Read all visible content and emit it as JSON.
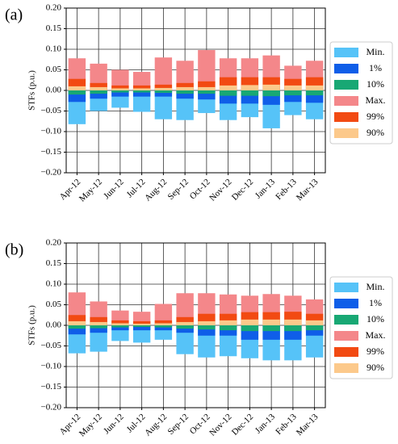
{
  "chart_data": [
    {
      "type": "bar",
      "label": "(a)",
      "y_label": "STFs (p.u.)",
      "grid": true,
      "legend": "right",
      "categories": [
        "Apr-12",
        "May-12",
        "Jun-12",
        "Jul-12",
        "Aug-12",
        "Sep-12",
        "Oct-12",
        "Nov-12",
        "Dec-12",
        "Jan-13",
        "Feb-13",
        "Mar-13"
      ],
      "ylim": [
        -0.2,
        0.2
      ],
      "yticks": [
        {
          "value": -0.2,
          "label": "−0.20"
        },
        {
          "value": -0.15,
          "label": "−0.15"
        },
        {
          "value": -0.1,
          "label": "−0.10"
        },
        {
          "value": -0.05,
          "label": "−0.05"
        },
        {
          "value": 0,
          "label": "0.00"
        },
        {
          "value": 0.05,
          "label": "0.05"
        },
        {
          "value": 0.1,
          "label": "0.10"
        },
        {
          "value": 0.15,
          "label": "0.15"
        },
        {
          "value": 0.2,
          "label": "0.20"
        }
      ],
      "series": [
        {
          "name": "Min.",
          "color": "#56c3f8",
          "values": [
            -0.082,
            -0.05,
            -0.042,
            -0.052,
            -0.07,
            -0.072,
            -0.055,
            -0.072,
            -0.065,
            -0.092,
            -0.06,
            -0.07
          ]
        },
        {
          "name": "1%",
          "color": "#0f5ee8",
          "values": [
            -0.028,
            -0.02,
            -0.015,
            -0.015,
            -0.015,
            -0.02,
            -0.022,
            -0.032,
            -0.032,
            -0.035,
            -0.028,
            -0.03
          ]
        },
        {
          "name": "10%",
          "color": "#18a874",
          "values": [
            -0.01,
            -0.008,
            -0.005,
            -0.005,
            -0.006,
            -0.008,
            -0.008,
            -0.013,
            -0.013,
            -0.014,
            -0.012,
            -0.012
          ]
        },
        {
          "name": "Max.",
          "color": "#f4878a",
          "values": [
            0.078,
            0.065,
            0.05,
            0.045,
            0.08,
            0.072,
            0.098,
            0.078,
            0.078,
            0.085,
            0.06,
            0.072
          ]
        },
        {
          "name": "99%",
          "color": "#f24a12",
          "values": [
            0.028,
            0.018,
            0.012,
            0.012,
            0.014,
            0.018,
            0.022,
            0.032,
            0.032,
            0.032,
            0.028,
            0.032
          ]
        },
        {
          "name": "90%",
          "color": "#fcc98b",
          "values": [
            0.01,
            0.008,
            0.005,
            0.005,
            0.006,
            0.008,
            0.008,
            0.012,
            0.013,
            0.014,
            0.012,
            0.012
          ]
        }
      ]
    },
    {
      "type": "bar",
      "label": "(b)",
      "y_label": "STFs (p.u.)",
      "grid": true,
      "legend": "right",
      "categories": [
        "Apr-12",
        "May-12",
        "Jun-12",
        "Jul-12",
        "Aug-12",
        "Sep-12",
        "Oct-12",
        "Nov-12",
        "Dec-12",
        "Jan-13",
        "Feb-13",
        "Mar-13"
      ],
      "ylim": [
        -0.2,
        0.2
      ],
      "yticks": [
        {
          "value": -0.2,
          "label": "−0.20"
        },
        {
          "value": -0.15,
          "label": "−0.15"
        },
        {
          "value": -0.1,
          "label": "−0.10"
        },
        {
          "value": -0.05,
          "label": "−0.05"
        },
        {
          "value": 0,
          "label": "0.00"
        },
        {
          "value": 0.05,
          "label": "0.05"
        },
        {
          "value": 0.1,
          "label": "0.10"
        },
        {
          "value": 0.15,
          "label": "0.15"
        },
        {
          "value": 0.2,
          "label": "0.20"
        }
      ],
      "series": [
        {
          "name": "Min.",
          "color": "#56c3f8",
          "values": [
            -0.068,
            -0.064,
            -0.038,
            -0.042,
            -0.035,
            -0.07,
            -0.078,
            -0.075,
            -0.08,
            -0.085,
            -0.085,
            -0.078
          ]
        },
        {
          "name": "1%",
          "color": "#0f5ee8",
          "values": [
            -0.022,
            -0.018,
            -0.012,
            -0.012,
            -0.012,
            -0.018,
            -0.025,
            -0.025,
            -0.035,
            -0.035,
            -0.035,
            -0.025
          ]
        },
        {
          "name": "10%",
          "color": "#18a874",
          "values": [
            -0.008,
            -0.007,
            -0.005,
            -0.004,
            -0.005,
            -0.008,
            -0.01,
            -0.012,
            -0.014,
            -0.014,
            -0.014,
            -0.012
          ]
        },
        {
          "name": "Max.",
          "color": "#f4878a",
          "values": [
            0.08,
            0.058,
            0.036,
            0.033,
            0.052,
            0.078,
            0.078,
            0.075,
            0.072,
            0.076,
            0.072,
            0.063
          ]
        },
        {
          "name": "99%",
          "color": "#f24a12",
          "values": [
            0.025,
            0.02,
            0.012,
            0.01,
            0.012,
            0.02,
            0.028,
            0.028,
            0.032,
            0.032,
            0.033,
            0.028
          ]
        },
        {
          "name": "90%",
          "color": "#fcc98b",
          "values": [
            0.01,
            0.008,
            0.005,
            0.004,
            0.005,
            0.008,
            0.01,
            0.012,
            0.014,
            0.014,
            0.014,
            0.012
          ]
        }
      ]
    }
  ]
}
